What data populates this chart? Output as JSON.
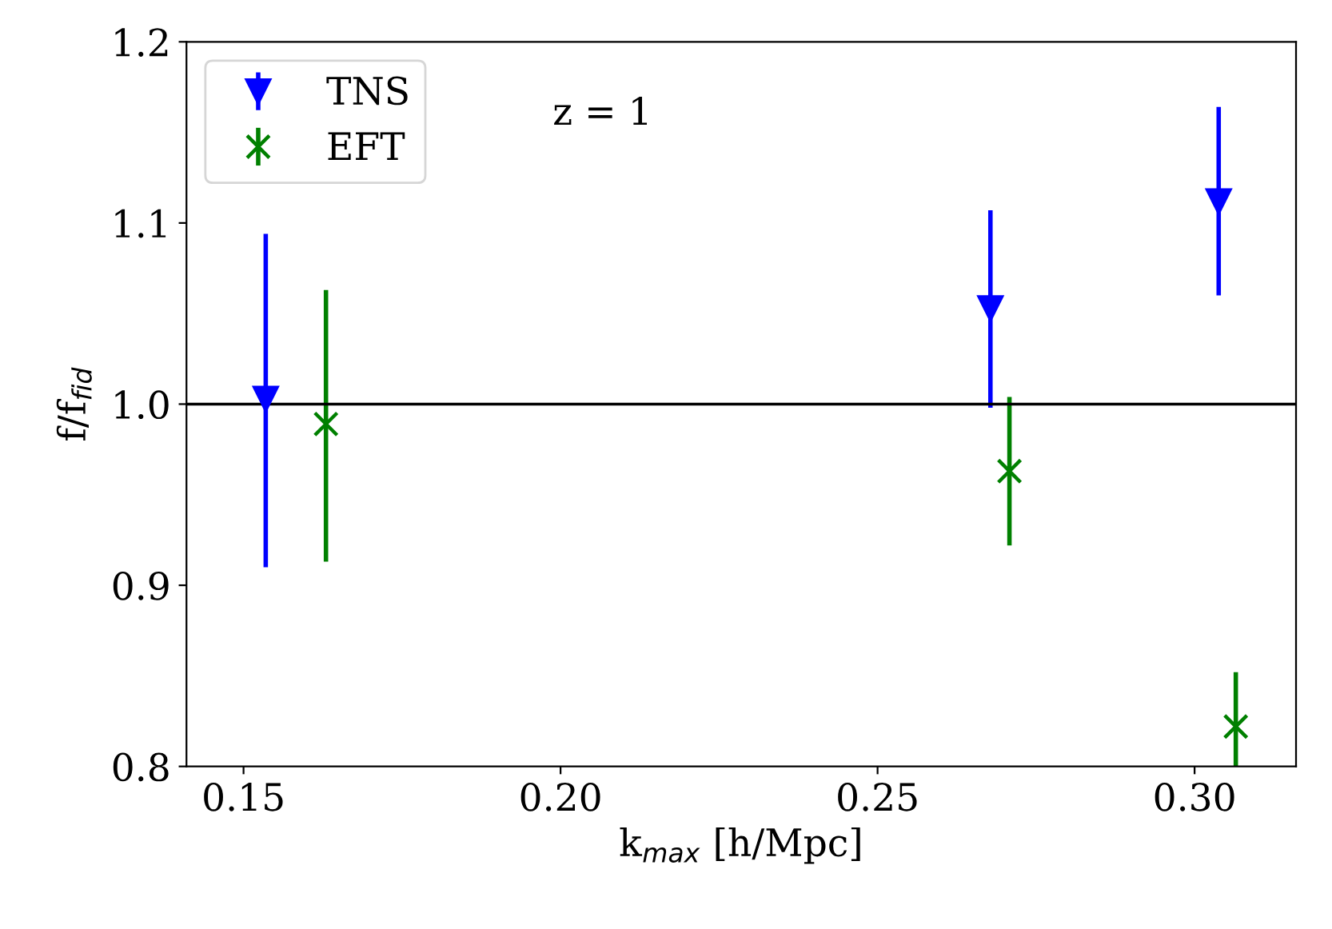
{
  "chart_data": {
    "type": "scatter",
    "xlabel": "k$_{max}$ [h/Mpc]",
    "ylabel": "f/f$_{fid}$",
    "series": [
      {
        "name": "TNS",
        "color": "#0000ff",
        "marker": "triangle",
        "x": [
          0.1535,
          0.2678,
          0.3038
        ],
        "values": [
          1.003,
          1.053,
          1.112
        ],
        "errors": [
          [
            0.91,
            1.094
          ],
          [
            0.998,
            1.107
          ],
          [
            1.06,
            1.164
          ]
        ]
      },
      {
        "name": "EFT",
        "color": "#008000",
        "marker": "cross",
        "x": [
          0.163,
          0.2708,
          0.3065
        ],
        "values": [
          0.989,
          0.963,
          0.822
        ],
        "errors": [
          [
            0.913,
            1.063
          ],
          [
            0.922,
            1.004
          ],
          [
            0.8,
            0.852
          ]
        ]
      }
    ],
    "xlim": [
      0.141,
      0.316
    ],
    "xticks": [
      0.15,
      {
        "value": 0.2,
        "label": "0.20"
      },
      0.25,
      {
        "value": 0.3,
        "label": "0.30"
      }
    ],
    "ylim": [
      0.8,
      1.2
    ],
    "yticks": [
      0.8,
      0.9,
      {
        "value": 1.0,
        "label": "1.0"
      },
      1.1,
      1.2
    ],
    "ref_lines": [
      {
        "axis": "y",
        "value": 1.0,
        "color": "#000000"
      }
    ],
    "annotations": [
      "z = 1"
    ],
    "legend": "top left",
    "grid": false
  }
}
